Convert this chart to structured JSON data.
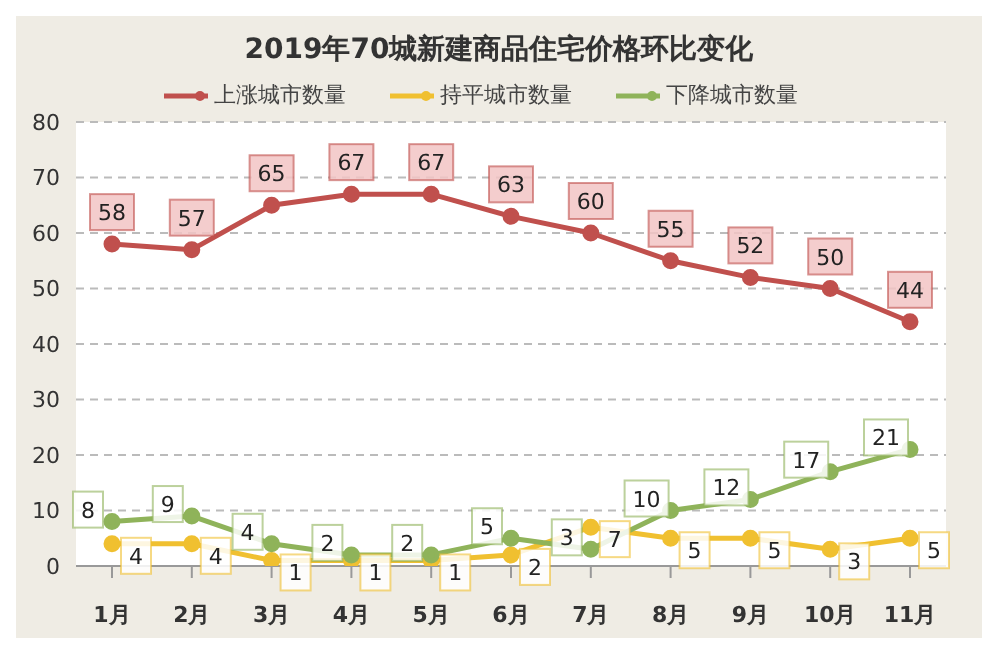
{
  "chart_data": {
    "type": "line",
    "title": "2019年70城新建商品住宅价格环比变化",
    "categories": [
      "1月",
      "2月",
      "3月",
      "4月",
      "5月",
      "6月",
      "7月",
      "8月",
      "9月",
      "10月",
      "11月"
    ],
    "series": [
      {
        "name": "上涨城市数量",
        "color": "#c0504d",
        "values": [
          58,
          57,
          65,
          67,
          67,
          63,
          60,
          55,
          52,
          50,
          44
        ]
      },
      {
        "name": "持平城市数量",
        "color": "#f0c030",
        "values": [
          4,
          4,
          1,
          1,
          1,
          2,
          7,
          5,
          5,
          3,
          5
        ]
      },
      {
        "name": "下降城市数量",
        "color": "#8fb35a",
        "values": [
          8,
          9,
          4,
          2,
          2,
          5,
          3,
          10,
          12,
          17,
          21
        ]
      }
    ],
    "ylim": [
      0,
      80
    ],
    "yticks": [
      0,
      10,
      20,
      30,
      40,
      50,
      60,
      70,
      80
    ],
    "grid": "y",
    "legend": "top",
    "marker": "circle",
    "line_style": "solid",
    "data_labels": true
  }
}
